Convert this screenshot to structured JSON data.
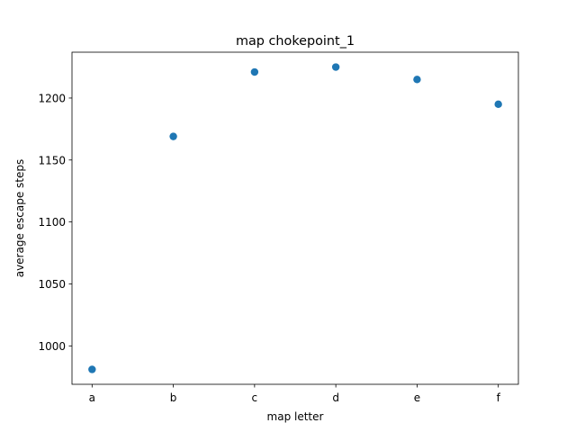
{
  "chart_data": {
    "type": "scatter",
    "title": "map chokepoint_1",
    "xlabel": "map letter",
    "ylabel": "average escape steps",
    "categories": [
      "a",
      "b",
      "c",
      "d",
      "e",
      "f"
    ],
    "values": [
      981,
      1169,
      1221,
      1225,
      1215,
      1195
    ],
    "ylim": [
      969,
      1237
    ],
    "yticks": [
      1000,
      1050,
      1100,
      1150,
      1200
    ],
    "grid": false,
    "legend": "none",
    "colors": {
      "marker": "#1f77b4",
      "axes": "#000000",
      "background": "#ffffff"
    }
  }
}
